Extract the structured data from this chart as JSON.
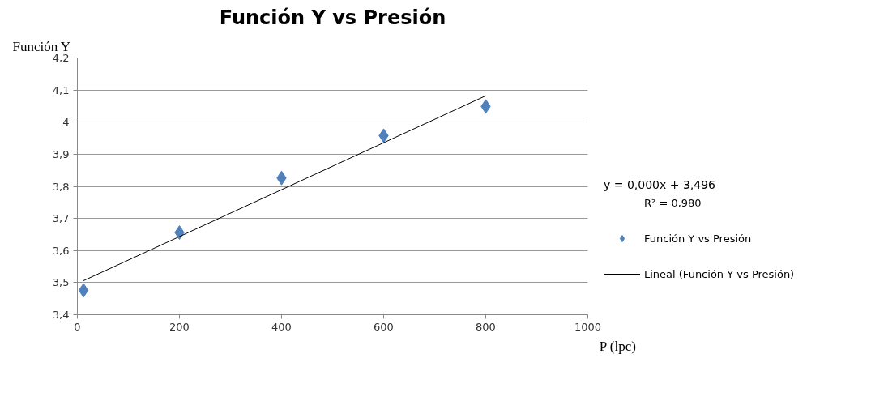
{
  "chart_data": {
    "type": "scatter",
    "title": "Función Y vs Presión",
    "xlabel": "P (lpc)",
    "ylabel": "Función Y",
    "series": [
      {
        "name": "Función Y vs Presión",
        "color": "#4f81bd",
        "marker": "diamond",
        "x": [
          12,
          200,
          400,
          600,
          800
        ],
        "values": [
          3.476,
          3.656,
          3.826,
          3.958,
          4.049
        ]
      },
      {
        "name": "Lineal (Función Y vs Presión)",
        "type": "line",
        "color": "#000000",
        "line_style": "solid",
        "x": [
          12,
          800
        ],
        "values": [
          3.506,
          4.082
        ]
      }
    ],
    "annotations": [
      "y = 0,000x + 3,496",
      "R² = 0,980"
    ],
    "xlim": [
      0,
      1000
    ],
    "xticks": [
      0,
      200,
      400,
      600,
      800,
      1000
    ],
    "ylim": [
      3.4,
      4.2
    ],
    "yticks": [
      {
        "value": 3.4,
        "label": "3,4"
      },
      {
        "value": 3.5,
        "label": "3,5"
      },
      {
        "value": 3.6,
        "label": "3,6"
      },
      {
        "value": 3.7,
        "label": "3,7"
      },
      {
        "value": 3.8,
        "label": "3,8"
      },
      {
        "value": 3.9,
        "label": "3,9"
      },
      {
        "value": 4,
        "label": "4"
      },
      {
        "value": 4.1,
        "label": "4,1"
      },
      {
        "value": 4.2,
        "label": "4,2"
      }
    ],
    "grid": "y",
    "legend": "right"
  }
}
